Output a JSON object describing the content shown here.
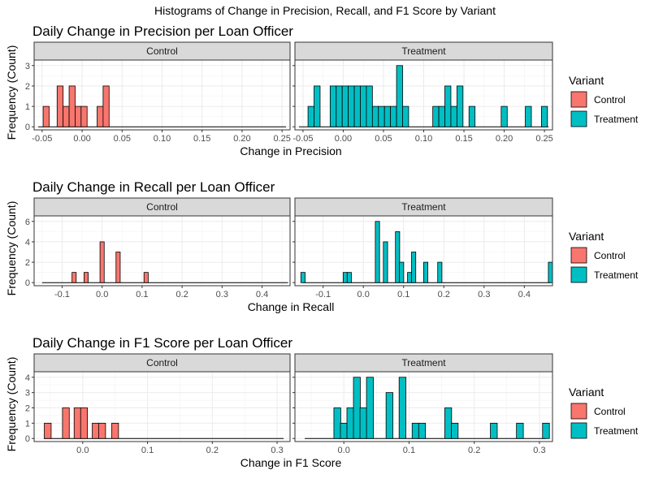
{
  "title": "Histograms of Change in Precision, Recall, and F1 Score by Variant",
  "legend": {
    "title": "Variant",
    "items": [
      {
        "label": "Control",
        "color": "#F8766D"
      },
      {
        "label": "Treatment",
        "color": "#00BFC4"
      }
    ]
  },
  "chart_data": [
    {
      "type": "bar",
      "title": "Daily Change in Precision per Loan Officer",
      "xlabel": "Change in Precision",
      "ylabel": "Frequency (Count)",
      "xlim": [
        -0.06,
        0.26
      ],
      "ylim": [
        0,
        3
      ],
      "yticks": [
        0,
        1,
        2,
        3
      ],
      "xticks": [
        -0.05,
        0.0,
        0.05,
        0.1,
        0.15,
        0.2,
        0.25
      ],
      "xtick_labels": [
        "-0.05",
        "0.00",
        "0.05",
        "0.10",
        "0.15",
        "0.20",
        "0.25"
      ],
      "bin_width": 0.0075,
      "facets": [
        "Control",
        "Treatment"
      ],
      "series": [
        {
          "name": "Control",
          "line": [
            -0.055,
            0.255
          ],
          "bins": [
            {
              "x": -0.045,
              "y": 1
            },
            {
              "x": -0.0275,
              "y": 2
            },
            {
              "x": -0.02,
              "y": 1
            },
            {
              "x": -0.0125,
              "y": 2
            },
            {
              "x": -0.005,
              "y": 1
            },
            {
              "x": 0.0025,
              "y": 1
            },
            {
              "x": 0.0225,
              "y": 1
            },
            {
              "x": 0.03,
              "y": 2
            }
          ]
        },
        {
          "name": "Treatment",
          "line": [
            -0.055,
            0.255
          ],
          "bins": [
            {
              "x": -0.04,
              "y": 1
            },
            {
              "x": -0.0325,
              "y": 2
            },
            {
              "x": -0.0125,
              "y": 2
            },
            {
              "x": -0.005,
              "y": 2
            },
            {
              "x": 0.0025,
              "y": 2
            },
            {
              "x": 0.01,
              "y": 2
            },
            {
              "x": 0.0175,
              "y": 2
            },
            {
              "x": 0.025,
              "y": 2
            },
            {
              "x": 0.0325,
              "y": 2
            },
            {
              "x": 0.04,
              "y": 1
            },
            {
              "x": 0.0475,
              "y": 1
            },
            {
              "x": 0.055,
              "y": 1
            },
            {
              "x": 0.0625,
              "y": 1
            },
            {
              "x": 0.07,
              "y": 3
            },
            {
              "x": 0.0775,
              "y": 1
            },
            {
              "x": 0.115,
              "y": 1
            },
            {
              "x": 0.1225,
              "y": 1
            },
            {
              "x": 0.13,
              "y": 2
            },
            {
              "x": 0.1375,
              "y": 1
            },
            {
              "x": 0.145,
              "y": 2
            },
            {
              "x": 0.16,
              "y": 1
            },
            {
              "x": 0.2,
              "y": 1
            },
            {
              "x": 0.23,
              "y": 1
            },
            {
              "x": 0.25,
              "y": 1
            }
          ]
        }
      ]
    },
    {
      "type": "bar",
      "title": "Daily Change in Recall per Loan Officer",
      "xlabel": "Change in Recall",
      "ylabel": "Frequency (Count)",
      "xlim": [
        -0.17,
        0.47
      ],
      "ylim": [
        0,
        6
      ],
      "yticks": [
        0,
        2,
        4,
        6
      ],
      "xticks": [
        -0.1,
        0.0,
        0.1,
        0.2,
        0.3,
        0.4
      ],
      "xtick_labels": [
        "-0.1",
        "0.0",
        "0.1",
        "0.2",
        "0.3",
        "0.4"
      ],
      "bin_width": 0.0105,
      "facets": [
        "Control",
        "Treatment"
      ],
      "series": [
        {
          "name": "Control",
          "line": [
            -0.15,
            0.465
          ],
          "bins": [
            {
              "x": -0.07,
              "y": 1
            },
            {
              "x": -0.04,
              "y": 1
            },
            {
              "x": 0.0,
              "y": 4
            },
            {
              "x": 0.04,
              "y": 3
            },
            {
              "x": 0.11,
              "y": 1
            }
          ]
        },
        {
          "name": "Treatment",
          "line": [
            -0.15,
            0.465
          ],
          "bins": [
            {
              "x": -0.15,
              "y": 1
            },
            {
              "x": -0.045,
              "y": 1
            },
            {
              "x": -0.035,
              "y": 1
            },
            {
              "x": 0.035,
              "y": 6
            },
            {
              "x": 0.055,
              "y": 4
            },
            {
              "x": 0.085,
              "y": 5
            },
            {
              "x": 0.095,
              "y": 2
            },
            {
              "x": 0.115,
              "y": 1
            },
            {
              "x": 0.125,
              "y": 3
            },
            {
              "x": 0.155,
              "y": 2
            },
            {
              "x": 0.19,
              "y": 2
            },
            {
              "x": 0.465,
              "y": 2
            }
          ]
        }
      ]
    },
    {
      "type": "bar",
      "title": "Daily Change in F1 Score per Loan Officer",
      "xlabel": "Change in F1 Score",
      "ylabel": "Frequency (Count)",
      "xlim": [
        -0.075,
        0.32
      ],
      "ylim": [
        0,
        4
      ],
      "yticks": [
        0,
        1,
        2,
        3,
        4
      ],
      "xticks": [
        0.0,
        0.1,
        0.2,
        0.3
      ],
      "xtick_labels": [
        "0.0",
        "0.1",
        "0.2",
        "0.3"
      ],
      "bin_width": 0.0105,
      "facets": [
        "Control",
        "Treatment"
      ],
      "series": [
        {
          "name": "Control",
          "line": [
            -0.06,
            0.31
          ],
          "bins": [
            {
              "x": -0.054,
              "y": 1
            },
            {
              "x": -0.026,
              "y": 2
            },
            {
              "x": -0.008,
              "y": 2
            },
            {
              "x": 0.002,
              "y": 2
            },
            {
              "x": 0.02,
              "y": 1
            },
            {
              "x": 0.03,
              "y": 1
            },
            {
              "x": 0.05,
              "y": 1
            }
          ]
        },
        {
          "name": "Treatment",
          "line": [
            -0.06,
            0.31
          ],
          "bins": [
            {
              "x": -0.01,
              "y": 2
            },
            {
              "x": 0.0,
              "y": 1
            },
            {
              "x": 0.01,
              "y": 2
            },
            {
              "x": 0.02,
              "y": 4
            },
            {
              "x": 0.03,
              "y": 2
            },
            {
              "x": 0.04,
              "y": 4
            },
            {
              "x": 0.07,
              "y": 3
            },
            {
              "x": 0.09,
              "y": 4
            },
            {
              "x": 0.11,
              "y": 1
            },
            {
              "x": 0.12,
              "y": 1
            },
            {
              "x": 0.16,
              "y": 2
            },
            {
              "x": 0.17,
              "y": 1
            },
            {
              "x": 0.23,
              "y": 1
            },
            {
              "x": 0.27,
              "y": 1
            },
            {
              "x": 0.31,
              "y": 1
            }
          ]
        }
      ]
    }
  ]
}
